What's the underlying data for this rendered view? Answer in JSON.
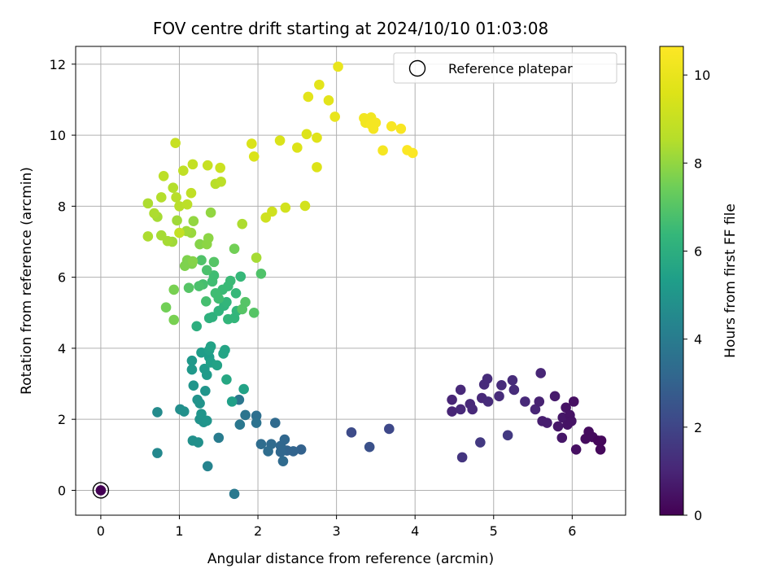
{
  "chart_data": {
    "type": "scatter",
    "title": "FOV centre drift starting at 2024/10/10 01:03:08",
    "xlabel": "Angular distance from reference (arcmin)",
    "ylabel": "Rotation from reference (arcmin)",
    "xlim": [
      -0.32,
      6.68
    ],
    "ylim": [
      -0.7,
      12.5
    ],
    "xticks": [
      0,
      1,
      2,
      3,
      4,
      5,
      6
    ],
    "yticks": [
      0,
      2,
      4,
      6,
      8,
      10,
      12
    ],
    "grid": true,
    "legend": {
      "position": "top-right",
      "entries": [
        "Reference platepar"
      ]
    },
    "colorbar": {
      "label": "Hours from first FF file",
      "min": 0,
      "max": 10.65,
      "ticks": [
        0,
        2,
        4,
        6,
        8,
        10
      ],
      "colormap": "viridis"
    },
    "reference_point": {
      "x": 0,
      "y": 0
    },
    "points": [
      [
        0,
        0,
        0
      ],
      [
        4.47,
        2.55,
        1.0
      ],
      [
        4.47,
        2.22,
        1.0
      ],
      [
        4.58,
        2.28,
        1.1
      ],
      [
        4.58,
        2.83,
        1.1
      ],
      [
        4.7,
        2.43,
        1.1
      ],
      [
        4.73,
        2.28,
        1.1
      ],
      [
        4.85,
        2.6,
        1.1
      ],
      [
        4.88,
        2.98,
        1.2
      ],
      [
        4.92,
        3.14,
        1.2
      ],
      [
        4.93,
        2.5,
        1.2
      ],
      [
        5.07,
        2.65,
        1.2
      ],
      [
        5.1,
        2.96,
        1.2
      ],
      [
        5.24,
        3.1,
        1.2
      ],
      [
        5.26,
        2.83,
        1.2
      ],
      [
        5.4,
        2.5,
        1.1
      ],
      [
        5.53,
        2.28,
        1.0
      ],
      [
        5.58,
        2.5,
        0.9
      ],
      [
        5.6,
        3.3,
        1.0
      ],
      [
        5.62,
        1.95,
        0.8
      ],
      [
        5.68,
        1.9,
        0.8
      ],
      [
        5.78,
        2.65,
        0.7
      ],
      [
        5.82,
        1.8,
        0.6
      ],
      [
        5.87,
        1.48,
        0.6
      ],
      [
        5.88,
        2.05,
        0.6
      ],
      [
        5.92,
        2.33,
        0.5
      ],
      [
        5.94,
        1.85,
        0.5
      ],
      [
        5.97,
        2.12,
        0.5
      ],
      [
        5.99,
        1.95,
        0.5
      ],
      [
        6.02,
        2.5,
        0.4
      ],
      [
        6.05,
        1.15,
        0.4
      ],
      [
        6.17,
        1.45,
        0.3
      ],
      [
        6.21,
        1.65,
        0.3
      ],
      [
        6.26,
        1.5,
        0.3
      ],
      [
        6.33,
        1.4,
        0.2
      ],
      [
        6.36,
        1.15,
        0.2
      ],
      [
        6.37,
        1.4,
        0.2
      ],
      [
        4.6,
        0.93,
        1.5
      ],
      [
        4.83,
        1.35,
        1.6
      ],
      [
        5.18,
        1.55,
        1.6
      ],
      [
        3.19,
        1.63,
        2.2
      ],
      [
        3.42,
        1.22,
        2.4
      ],
      [
        3.67,
        1.73,
        2.1
      ],
      [
        2.55,
        1.15,
        3.0
      ],
      [
        2.45,
        1.1,
        3.1
      ],
      [
        2.37,
        1.12,
        3.1
      ],
      [
        2.34,
        1.43,
        3.2
      ],
      [
        2.29,
        1.25,
        3.2
      ],
      [
        2.29,
        1.08,
        3.2
      ],
      [
        2.32,
        0.82,
        3.3
      ],
      [
        2.17,
        1.3,
        3.3
      ],
      [
        2.22,
        1.9,
        3.3
      ],
      [
        2.13,
        1.1,
        3.4
      ],
      [
        2.04,
        1.3,
        3.4
      ],
      [
        1.98,
        2.1,
        3.5
      ],
      [
        1.98,
        1.9,
        3.6
      ],
      [
        1.84,
        2.12,
        3.7
      ],
      [
        1.77,
        1.85,
        3.8
      ],
      [
        1.76,
        2.55,
        3.8
      ],
      [
        1.7,
        -0.1,
        3.9
      ],
      [
        1.5,
        1.48,
        4.0
      ],
      [
        1.36,
        0.68,
        4.3
      ],
      [
        0.72,
        1.05,
        4.5
      ],
      [
        0.72,
        2.2,
        4.6
      ],
      [
        1.01,
        2.28,
        4.7
      ],
      [
        1.06,
        2.22,
        4.8
      ],
      [
        1.17,
        1.4,
        4.8
      ],
      [
        1.24,
        1.35,
        4.8
      ],
      [
        1.23,
        2.55,
        4.9
      ],
      [
        1.26,
        2.45,
        4.9
      ],
      [
        1.26,
        2.0,
        4.9
      ],
      [
        1.31,
        1.92,
        4.9
      ],
      [
        1.28,
        2.15,
        5.0
      ],
      [
        1.35,
        1.96,
        5.0
      ],
      [
        1.33,
        2.8,
        5.0
      ],
      [
        1.18,
        2.95,
        5.0
      ],
      [
        1.16,
        3.4,
        5.1
      ],
      [
        1.16,
        3.65,
        5.1
      ],
      [
        1.35,
        3.25,
        5.2
      ],
      [
        1.32,
        3.42,
        5.2
      ],
      [
        1.28,
        3.88,
        5.3
      ],
      [
        1.38,
        3.75,
        5.3
      ],
      [
        1.4,
        3.6,
        5.4
      ],
      [
        1.38,
        3.95,
        5.4
      ],
      [
        1.4,
        4.05,
        5.5
      ],
      [
        1.48,
        3.52,
        5.5
      ],
      [
        1.56,
        3.85,
        5.6
      ],
      [
        1.58,
        3.95,
        5.6
      ],
      [
        1.6,
        3.12,
        5.7
      ],
      [
        1.82,
        2.85,
        5.5
      ],
      [
        1.67,
        2.5,
        5.4
      ],
      [
        1.22,
        4.62,
        6.0
      ],
      [
        1.38,
        4.85,
        6.1
      ],
      [
        1.42,
        4.88,
        6.1
      ],
      [
        1.5,
        5.05,
        6.2
      ],
      [
        1.57,
        5.2,
        6.2
      ],
      [
        1.6,
        5.3,
        6.3
      ],
      [
        1.62,
        4.82,
        6.3
      ],
      [
        1.7,
        4.85,
        6.3
      ],
      [
        1.73,
        5.05,
        6.3
      ],
      [
        1.72,
        5.55,
        6.4
      ],
      [
        1.78,
        6.02,
        6.4
      ],
      [
        1.65,
        5.9,
        6.5
      ],
      [
        1.62,
        5.75,
        6.5
      ],
      [
        1.55,
        5.65,
        6.5
      ],
      [
        1.5,
        5.4,
        6.6
      ],
      [
        1.46,
        5.55,
        6.6
      ],
      [
        1.42,
        5.88,
        6.6
      ],
      [
        1.44,
        6.05,
        6.6
      ],
      [
        1.34,
        5.32,
        6.7
      ],
      [
        1.3,
        5.8,
        6.7
      ],
      [
        1.25,
        5.75,
        6.8
      ],
      [
        1.12,
        5.7,
        7.0
      ],
      [
        1.35,
        6.2,
        6.8
      ],
      [
        1.28,
        6.48,
        6.9
      ],
      [
        1.44,
        6.43,
        7.0
      ],
      [
        1.84,
        5.3,
        7.0
      ],
      [
        1.8,
        5.1,
        7.0
      ],
      [
        1.95,
        5.0,
        7.0
      ],
      [
        2.04,
        6.1,
        6.9
      ],
      [
        1.7,
        6.8,
        7.5
      ],
      [
        0.83,
        5.15,
        7.5
      ],
      [
        0.93,
        4.8,
        7.6
      ],
      [
        0.93,
        5.65,
        7.6
      ],
      [
        1.07,
        6.32,
        7.7
      ],
      [
        1.1,
        6.48,
        7.7
      ],
      [
        1.16,
        6.38,
        7.7
      ],
      [
        1.17,
        6.45,
        7.8
      ],
      [
        1.26,
        6.93,
        7.8
      ],
      [
        1.35,
        6.93,
        7.9
      ],
      [
        1.37,
        7.1,
        7.9
      ],
      [
        1.4,
        7.82,
        8.0
      ],
      [
        1.18,
        7.58,
        8.0
      ],
      [
        1.15,
        7.25,
        8.1
      ],
      [
        1.09,
        7.3,
        8.2
      ],
      [
        0.97,
        7.6,
        8.2
      ],
      [
        0.91,
        7.0,
        8.2
      ],
      [
        0.85,
        7.02,
        8.3
      ],
      [
        0.77,
        7.18,
        8.3
      ],
      [
        0.72,
        7.7,
        8.3
      ],
      [
        0.68,
        7.8,
        8.4
      ],
      [
        0.6,
        8.08,
        8.4
      ],
      [
        0.6,
        7.15,
        8.4
      ],
      [
        0.77,
        8.25,
        8.5
      ],
      [
        0.92,
        8.52,
        8.5
      ],
      [
        0.96,
        8.25,
        8.6
      ],
      [
        1.0,
        8.0,
        8.6
      ],
      [
        1.1,
        8.05,
        8.7
      ],
      [
        1.15,
        8.37,
        8.8
      ],
      [
        0.8,
        8.85,
        8.7
      ],
      [
        1.05,
        9.0,
        8.8
      ],
      [
        1.17,
        9.18,
        8.9
      ],
      [
        0.95,
        9.78,
        9.0
      ],
      [
        1.36,
        9.15,
        9.0
      ],
      [
        1.52,
        9.08,
        9.1
      ],
      [
        1.8,
        7.5,
        8.4
      ],
      [
        1.98,
        6.55,
        8.3
      ],
      [
        1.46,
        8.63,
        8.6
      ],
      [
        1.53,
        8.69,
        8.7
      ],
      [
        1.0,
        7.25,
        8.9
      ],
      [
        2.1,
        7.68,
        9.2
      ],
      [
        2.18,
        7.85,
        9.2
      ],
      [
        2.35,
        7.96,
        9.3
      ],
      [
        2.6,
        8.01,
        9.3
      ],
      [
        1.92,
        9.76,
        9.5
      ],
      [
        1.95,
        9.4,
        9.5
      ],
      [
        2.28,
        9.85,
        9.5
      ],
      [
        2.5,
        9.65,
        9.6
      ],
      [
        2.62,
        10.03,
        9.6
      ],
      [
        2.75,
        9.93,
        9.7
      ],
      [
        2.75,
        9.1,
        9.6
      ],
      [
        2.64,
        11.08,
        9.8
      ],
      [
        2.78,
        11.42,
        9.8
      ],
      [
        2.9,
        10.98,
        9.8
      ],
      [
        2.98,
        10.52,
        10.0
      ],
      [
        3.02,
        11.93,
        10.0
      ],
      [
        3.35,
        10.48,
        10.3
      ],
      [
        3.37,
        10.35,
        10.3
      ],
      [
        3.44,
        10.5,
        10.3
      ],
      [
        3.44,
        10.3,
        10.4
      ],
      [
        3.47,
        10.18,
        10.4
      ],
      [
        3.5,
        10.35,
        10.4
      ],
      [
        3.59,
        9.57,
        10.4
      ],
      [
        3.7,
        10.25,
        10.5
      ],
      [
        3.82,
        10.18,
        10.5
      ],
      [
        3.9,
        9.58,
        10.6
      ],
      [
        3.97,
        9.5,
        10.6
      ]
    ]
  }
}
